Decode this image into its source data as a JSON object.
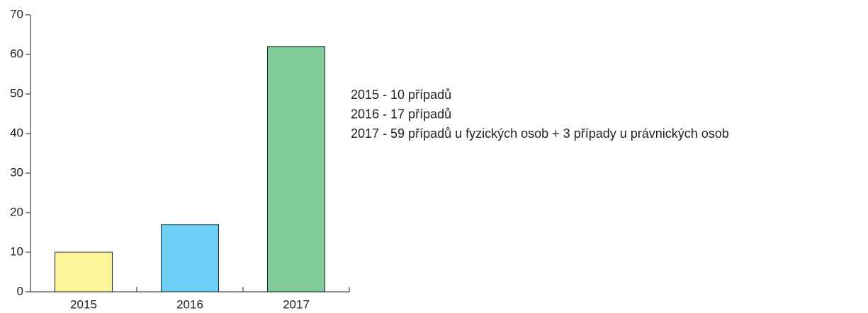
{
  "chart_data": {
    "type": "bar",
    "categories": [
      "2015",
      "2016",
      "2017"
    ],
    "values": [
      10,
      17,
      62
    ],
    "colors": [
      "#fdf59a",
      "#6ccff6",
      "#82cc9c"
    ],
    "ylim": [
      0,
      70
    ],
    "yticks": [
      0,
      10,
      20,
      30,
      40,
      50,
      60,
      70
    ],
    "annotations": [
      "2015 - 10 případů",
      "2016 - 17 případů",
      "2017 - 59 případů u fyzických osob + 3 případy u právnických osob"
    ]
  }
}
